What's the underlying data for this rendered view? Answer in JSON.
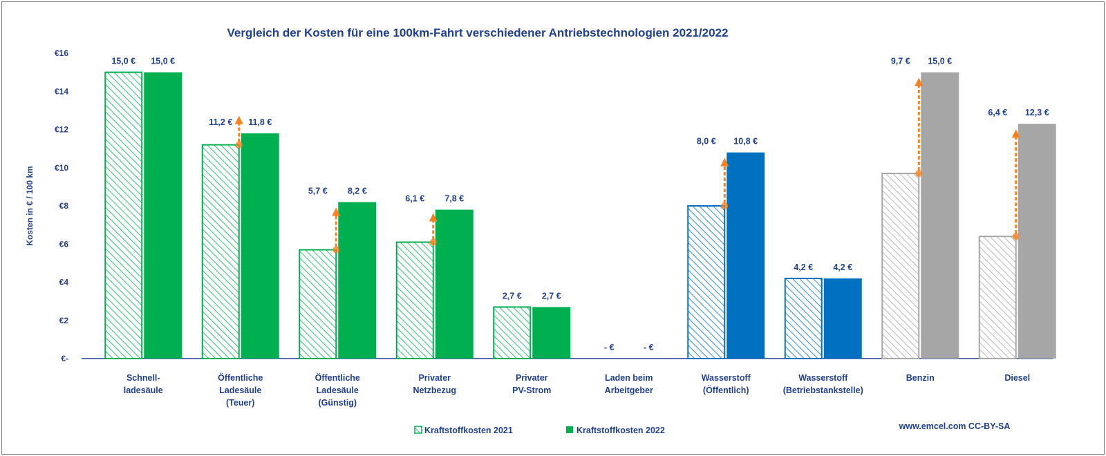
{
  "chart_data": {
    "type": "bar",
    "title": "Vergleich der Kosten für eine 100km-Fahrt verschiedener Antriebstechnologien 2021/2022",
    "ylabel": "Kosten in € / 100 km",
    "xlabel": "",
    "ylim": [
      0,
      16
    ],
    "y_ticks": [
      {
        "value": 0,
        "label": "€-"
      },
      {
        "value": 2,
        "label": "€2"
      },
      {
        "value": 4,
        "label": "€4"
      },
      {
        "value": 6,
        "label": "€6"
      },
      {
        "value": 8,
        "label": "€8"
      },
      {
        "value": 10,
        "label": "€10"
      },
      {
        "value": 12,
        "label": "€12"
      },
      {
        "value": 14,
        "label": "€14"
      },
      {
        "value": 16,
        "label": "€16"
      }
    ],
    "grid": false,
    "legend_position": "bottom",
    "categories": [
      [
        "Schnell-",
        "ladesäule"
      ],
      [
        "Öffentliche",
        "Ladesäule",
        "(Teuer)"
      ],
      [
        "Öffentliche",
        "Ladesäule",
        "(Günstig)"
      ],
      [
        "Privater",
        "Netzbezug"
      ],
      [
        "Privater",
        "PV-Strom"
      ],
      [
        "Laden beim",
        "Arbeitgeber"
      ],
      [
        "Wasserstoff",
        "(Öffentlich)"
      ],
      [
        "Wasserstoff",
        "(Betriebstankstelle)"
      ],
      [
        "Benzin"
      ],
      [
        "Diesel"
      ]
    ],
    "category_groups": [
      "electric",
      "electric",
      "electric",
      "electric",
      "electric",
      "electric",
      "hydrogen",
      "hydrogen",
      "fossil",
      "fossil"
    ],
    "group_colors": {
      "electric": "#00b050",
      "hydrogen": "#0070c0",
      "fossil": "#a6a6a6"
    },
    "series": [
      {
        "name": "Kraftstoffkosten 2021",
        "pattern": "hatched",
        "values": [
          15.0,
          11.2,
          5.7,
          6.1,
          2.7,
          0,
          8.0,
          4.2,
          9.7,
          6.4
        ],
        "labels": [
          "15,0 €",
          "11,2 €",
          "5,7 €",
          "6,1 €",
          "2,7 €",
          "- €",
          "8,0 €",
          "4,2 €",
          "9,7 €",
          "6,4 €"
        ]
      },
      {
        "name": "Kraftstoffkosten 2022",
        "pattern": "solid",
        "values": [
          15.0,
          11.8,
          8.2,
          7.8,
          2.7,
          0,
          10.8,
          4.2,
          15.0,
          12.3
        ],
        "labels": [
          "15,0 €",
          "11,8 €",
          "8,2 €",
          "7,8 €",
          "2,7 €",
          "- €",
          "10,8 €",
          "4,2 €",
          "15,0 €",
          "12,3 €"
        ]
      }
    ],
    "increase_arrows": {
      "color": "#f5821f",
      "categories": [
        1,
        2,
        3,
        6,
        8,
        9
      ]
    },
    "source_note": "www.emcel.com CC-BY-SA"
  }
}
